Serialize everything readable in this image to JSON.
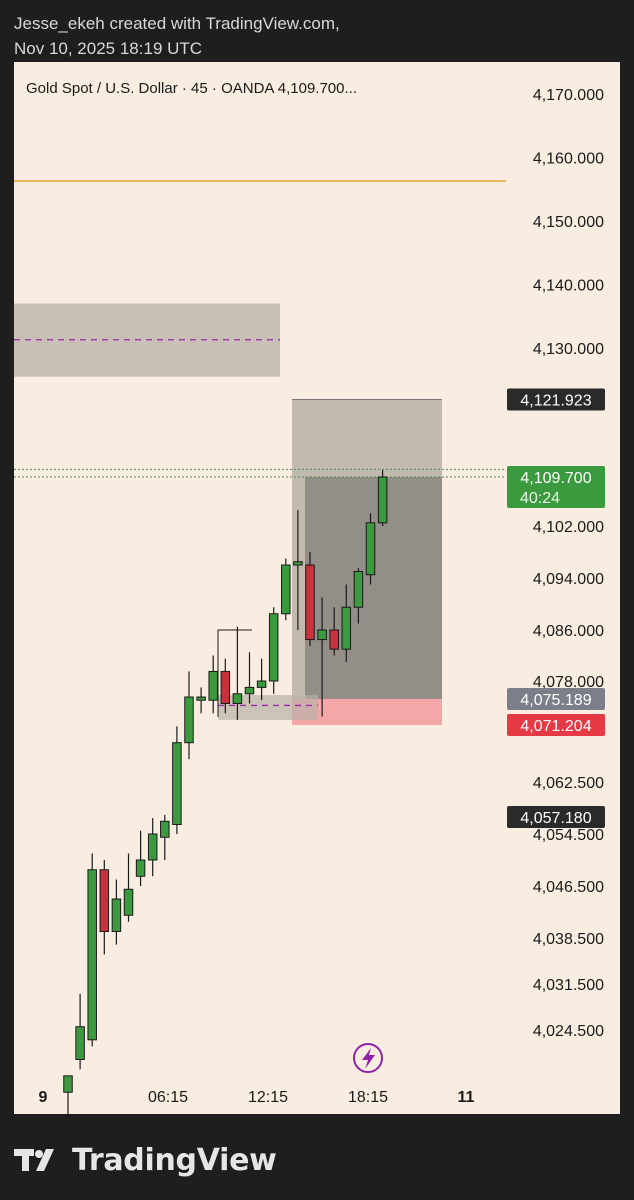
{
  "header": {
    "line1": "Jesse_ekeh created with TradingView.com,",
    "line2": "Nov 10, 2025 18:19 UTC"
  },
  "footer": {
    "brand": "TradingView",
    "logo_icon": "tradingview-logo-icon"
  },
  "colors": {
    "background": "#f8ede0",
    "bull": "#3c9a3e",
    "bear": "#c8323c",
    "wick": "#1a1a1a",
    "orange_line": "#f0a830",
    "purple_dash": "#9c27b0",
    "zone_grey": "#b8b0a6",
    "position_grey": "#8e8a84",
    "stop_red": "#f4a3a3"
  },
  "chart_data": {
    "type": "candlestick",
    "title": "Gold Spot / U.S. Dollar · 45 · OANDA  4,109.700...",
    "symbol": "Gold Spot / U.S. Dollar",
    "interval": "45",
    "exchange": "OANDA",
    "last_price_header": "4,109.700...",
    "y_ticks": [
      "4,170.000",
      "4,160.000",
      "4,150.000",
      "4,140.000",
      "4,130.000",
      "4,102.000",
      "4,094.000",
      "4,086.000",
      "4,078.000",
      "4,062.500",
      "4,054.500",
      "4,046.500",
      "4,038.500",
      "4,031.500",
      "4,024.500"
    ],
    "x_ticks": [
      "9",
      "06:15",
      "12:15",
      "18:15",
      "11"
    ],
    "price_labels": [
      {
        "text": "4,121.923",
        "style": "dark"
      },
      {
        "text": "4,109.700",
        "sub": "40:24",
        "style": "green"
      },
      {
        "text": "4,075.189",
        "style": "grey"
      },
      {
        "text": "4,071.204",
        "style": "red"
      },
      {
        "text": "4,057.180",
        "style": "dark"
      }
    ],
    "horizontal_line": 4156.3,
    "zone": {
      "top": 4137.0,
      "bottom": 4125.5,
      "midline": 4131.3
    },
    "position": {
      "entry": 4075.189,
      "target": 4121.923,
      "stop": 4071.204
    },
    "fvg_zone": {
      "top": 4075.8,
      "bottom": 4072.6,
      "midline": 4074.2
    },
    "candles": [
      {
        "o": 4015.0,
        "h": 4017.5,
        "l": 4010.0,
        "c": 4017.5
      },
      {
        "o": 4020.0,
        "h": 4030.0,
        "l": 4018.5,
        "c": 4025.0
      },
      {
        "o": 4023.0,
        "h": 4051.5,
        "l": 4022.0,
        "c": 4049.0
      },
      {
        "o": 4049.0,
        "h": 4050.5,
        "l": 4036.0,
        "c": 4039.5
      },
      {
        "o": 4039.5,
        "h": 4047.5,
        "l": 4037.5,
        "c": 4044.5
      },
      {
        "o": 4042.0,
        "h": 4051.5,
        "l": 4041.0,
        "c": 4046.0
      },
      {
        "o": 4048.0,
        "h": 4055.0,
        "l": 4046.5,
        "c": 4050.5
      },
      {
        "o": 4050.5,
        "h": 4057.0,
        "l": 4048.0,
        "c": 4054.5
      },
      {
        "o": 4054.0,
        "h": 4057.5,
        "l": 4050.5,
        "c": 4056.5
      },
      {
        "o": 4056.0,
        "h": 4071.0,
        "l": 4054.5,
        "c": 4068.5
      },
      {
        "o": 4068.5,
        "h": 4079.5,
        "l": 4066.0,
        "c": 4075.5
      },
      {
        "o": 4075.0,
        "h": 4077.0,
        "l": 4073.0,
        "c": 4075.5
      },
      {
        "o": 4075.0,
        "h": 4082.0,
        "l": 4073.0,
        "c": 4079.5
      },
      {
        "o": 4079.5,
        "h": 4081.5,
        "l": 4073.0,
        "c": 4074.5
      },
      {
        "o": 4074.5,
        "h": 4086.5,
        "l": 4072.0,
        "c": 4076.0
      },
      {
        "o": 4076.0,
        "h": 4082.5,
        "l": 4074.5,
        "c": 4077.0
      },
      {
        "o": 4077.0,
        "h": 4081.5,
        "l": 4075.0,
        "c": 4078.0
      },
      {
        "o": 4078.0,
        "h": 4089.5,
        "l": 4076.0,
        "c": 4088.5
      },
      {
        "o": 4088.5,
        "h": 4097.0,
        "l": 4087.5,
        "c": 4096.0
      },
      {
        "o": 4096.0,
        "h": 4104.5,
        "l": 4086.0,
        "c": 4096.5
      },
      {
        "o": 4096.0,
        "h": 4098.0,
        "l": 4083.5,
        "c": 4084.5
      },
      {
        "o": 4084.5,
        "h": 4091.0,
        "l": 4072.5,
        "c": 4086.0
      },
      {
        "o": 4086.0,
        "h": 4089.5,
        "l": 4082.0,
        "c": 4083.0
      },
      {
        "o": 4083.0,
        "h": 4093.0,
        "l": 4081.0,
        "c": 4089.5
      },
      {
        "o": 4089.5,
        "h": 4095.5,
        "l": 4087.0,
        "c": 4095.0
      },
      {
        "o": 4094.5,
        "h": 4104.0,
        "l": 4093.0,
        "c": 4102.5
      },
      {
        "o": 4102.5,
        "h": 4110.8,
        "l": 4102.0,
        "c": 4109.7
      }
    ]
  }
}
